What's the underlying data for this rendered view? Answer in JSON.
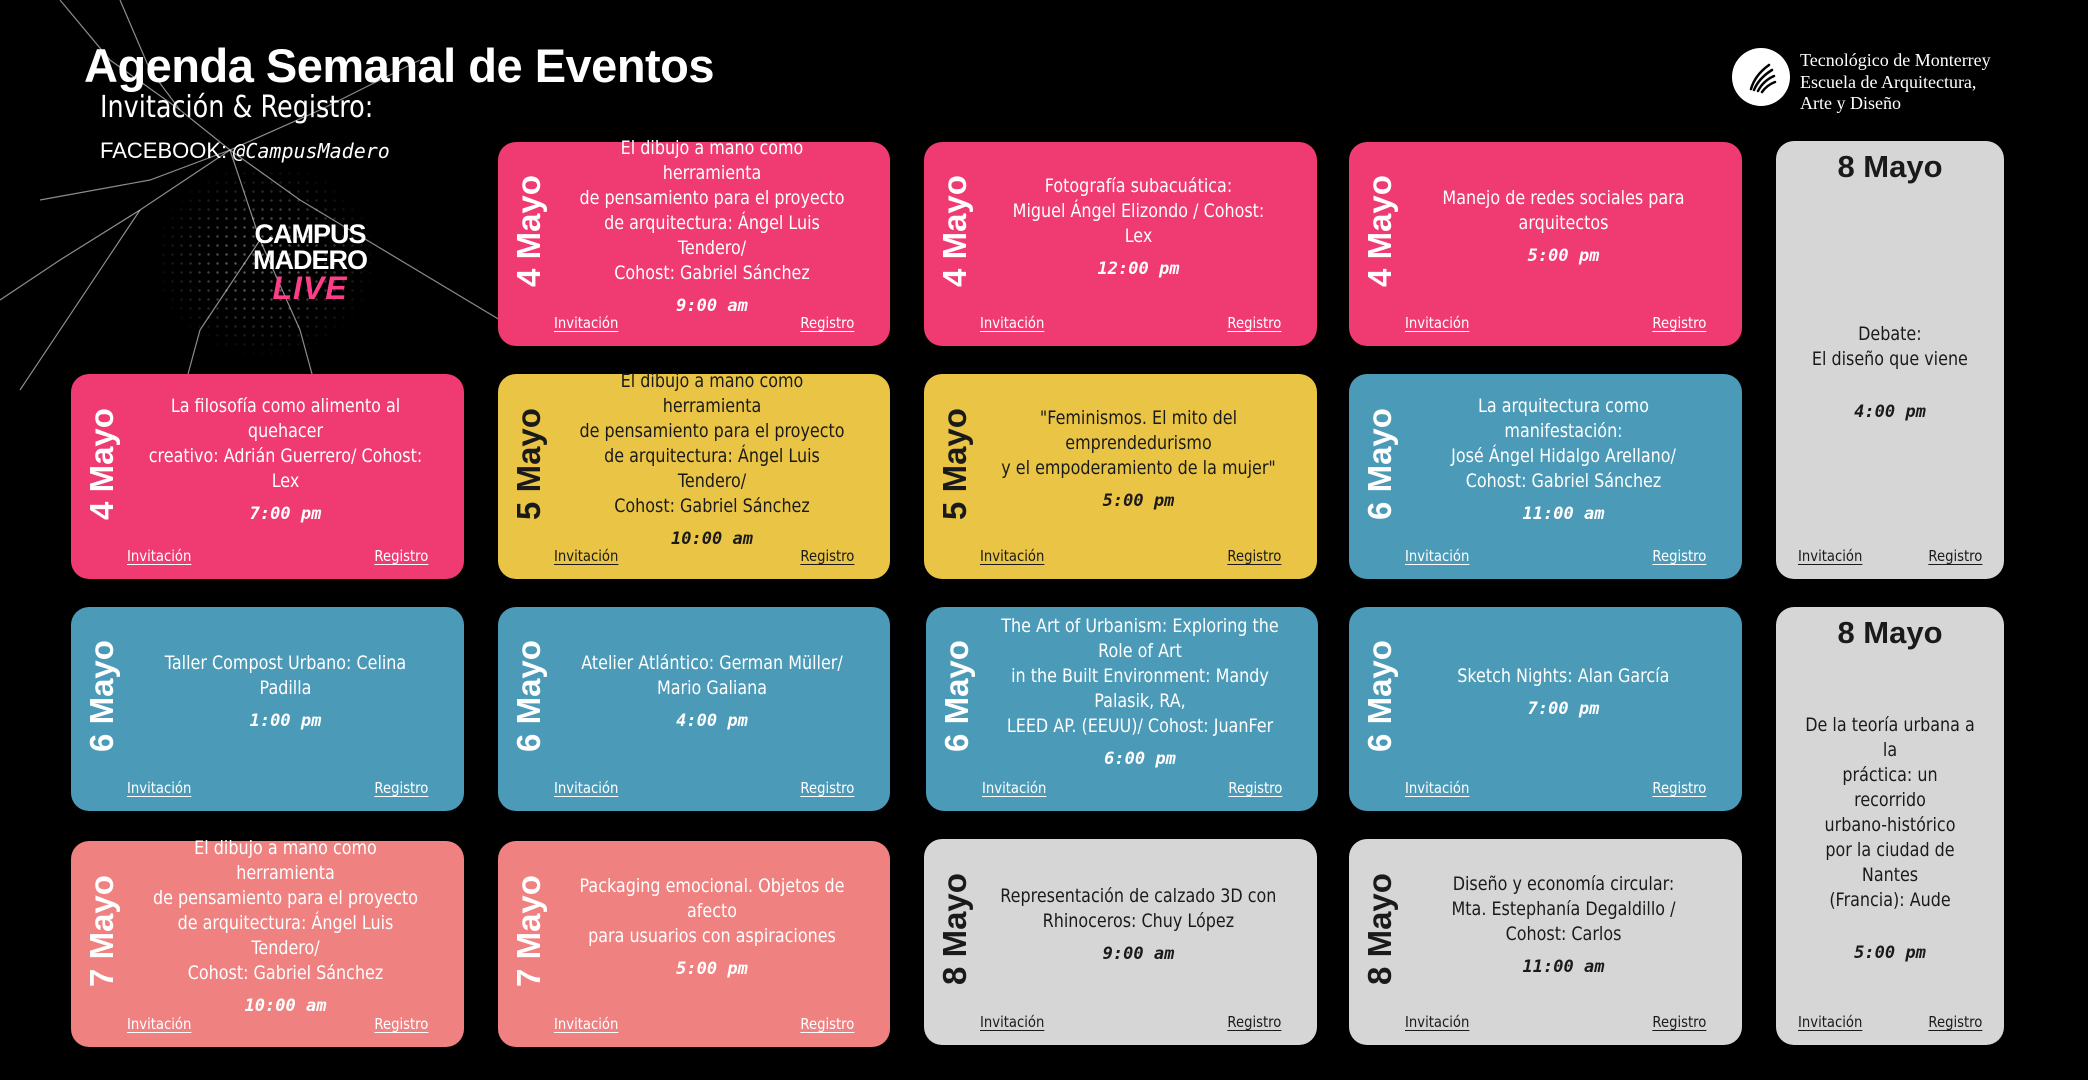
{
  "header": {
    "title": "Agenda Semanal de Eventos",
    "subtitle": "Invitación & Registro:",
    "facebook_label": "FACEBOOK:",
    "facebook_handle": "@CampusMadero"
  },
  "brand": {
    "campus_line1": "CAMPUS",
    "campus_line2": "MADERO",
    "campus_line3": "LIVE",
    "institution_line1": "Tecnológico de Monterrey",
    "institution_line2": "Escuela de Arquitectura,",
    "institution_line3": "Arte y Diseño"
  },
  "colors": {
    "pink": "#ef3a72",
    "yellow": "#eac444",
    "blue": "#4b9ab8",
    "salmon": "#ef8181",
    "gray": "#d6d6d6"
  },
  "links": {
    "invitacion": "Invitación",
    "registro": "Registro"
  },
  "events": [
    {
      "date": "4 Mayo",
      "title": "El dibujo a mano como herramienta\nde pensamiento para el proyecto\nde arquitectura: Ángel Luis Tendero/\nCohost: Gabriel Sánchez",
      "time": "9:00 am"
    },
    {
      "date": "4 Mayo",
      "title": "Fotografía subacuática:\nMiguel Ángel Elizondo / Cohost: Lex",
      "time": "12:00 pm"
    },
    {
      "date": "4 Mayo",
      "title": "Manejo de redes sociales para arquitectos",
      "time": "5:00 pm"
    },
    {
      "date": "4 Mayo",
      "title": "La filosofía como alimento al quehacer\ncreativo: Adrián Guerrero/ Cohost: Lex",
      "time": "7:00 pm"
    },
    {
      "date": "5 Mayo",
      "title": "El dibujo a mano como herramienta\nde pensamiento para el proyecto\nde arquitectura: Ángel Luis Tendero/\nCohost: Gabriel Sánchez",
      "time": "10:00 am"
    },
    {
      "date": "5 Mayo",
      "title": "\"Feminismos. El mito del emprendedurismo\ny el empoderamiento de la mujer\"",
      "time": "5:00 pm"
    },
    {
      "date": "6 Mayo",
      "title": "La arquitectura como manifestación:\nJosé Ángel Hidalgo Arellano/\nCohost: Gabriel Sánchez",
      "time": "11:00 am"
    },
    {
      "date": "6 Mayo",
      "title": "Taller Compost Urbano: Celina Padilla",
      "time": "1:00 pm"
    },
    {
      "date": "6 Mayo",
      "title": "Atelier Atlántico: German Müller/ Mario Galiana",
      "time": "4:00 pm"
    },
    {
      "date": "6 Mayo",
      "title": "The Art of Urbanism: Exploring the Role of Art\nin the Built Environment: Mandy Palasik, RA,\nLEED AP. (EEUU)/ Cohost: JuanFer",
      "time": "6:00 pm"
    },
    {
      "date": "6 Mayo",
      "title": "Sketch Nights: Alan García",
      "time": "7:00 pm"
    },
    {
      "date": "7 Mayo",
      "title": "El dibujo a mano como herramienta\nde pensamiento para el proyecto\nde arquitectura: Ángel Luis Tendero/\nCohost: Gabriel Sánchez",
      "time": "10:00 am"
    },
    {
      "date": "7 Mayo",
      "title": "Packaging emocional. Objetos de afecto\npara usuarios con aspiraciones",
      "time": "5:00 pm"
    },
    {
      "date": "8 Mayo",
      "title": "Representación de calzado 3D con\nRhinoceros: Chuy López",
      "time": "9:00 am"
    },
    {
      "date": "8 Mayo",
      "title": "Diseño y economía circular:\nMta. Estephanía Degaldillo / Cohost: Carlos",
      "time": "11:00 am"
    },
    {
      "date": "8 Mayo",
      "title": "Debate:\nEl diseño que viene",
      "time": "4:00 pm"
    },
    {
      "date": "8 Mayo",
      "title": "De la teoría urbana a la\npráctica: un recorrido\nurbano-histórico\npor la ciudad de Nantes\n(Francia): Aude",
      "time": "5:00 pm"
    }
  ]
}
